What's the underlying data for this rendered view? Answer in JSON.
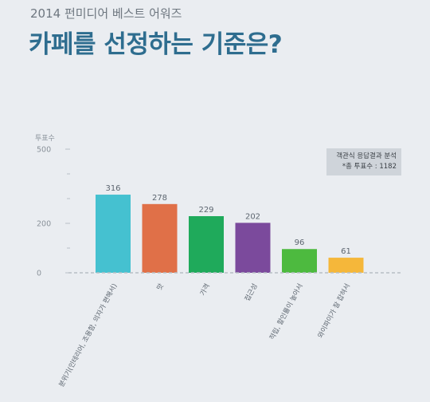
{
  "header": {
    "subtitle": "2014 펀미디어 베스트 어워즈",
    "title": "카페를 선정하는 기준은?"
  },
  "note": {
    "line1": "객관식 응답결과 분석",
    "line2": "*총 투표수 : 1182"
  },
  "colors": {
    "background": "#eaedf1",
    "title": "#2e6d8f",
    "axis_text": "#8a929a",
    "baseline": "#b8bfc6",
    "note_box": "#cfd4da"
  },
  "chart_data": {
    "type": "bar",
    "ylabel": "투표수",
    "ylim": [
      0,
      500
    ],
    "yticks": [
      0,
      200,
      500
    ],
    "grid": false,
    "categories": [
      "분위기(인테리어, 조용함, 의자가 편해서)",
      "맛",
      "가격",
      "접근성",
      "적립, 할인률이 높아서",
      "와이파이가 잘 잡혀서"
    ],
    "values": [
      316,
      278,
      229,
      202,
      96,
      61
    ],
    "bar_colors": [
      "#45c1d0",
      "#e07048",
      "#1faa5b",
      "#7b4a9c",
      "#4dba3f",
      "#f5b73a"
    ]
  }
}
